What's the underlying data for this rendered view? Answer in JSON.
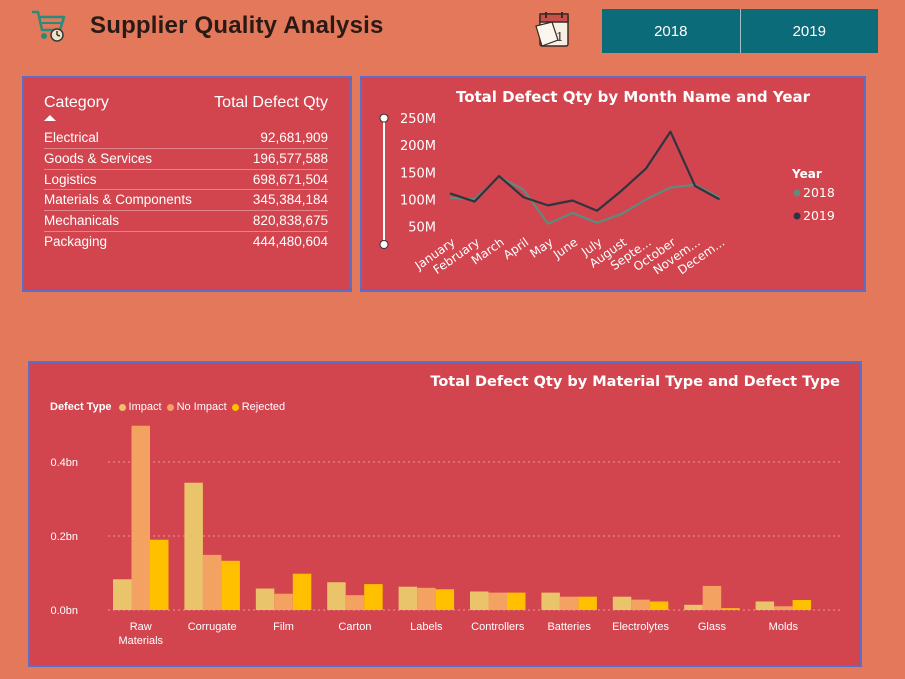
{
  "header": {
    "title": "Supplier Quality Analysis",
    "cart_icon": "shopping-cart-icon",
    "calendar_icon": "calendar-icon"
  },
  "year_slicer": {
    "options": [
      "2018",
      "2019"
    ]
  },
  "category_table": {
    "headers": {
      "category": "Category",
      "qty": "Total Defect Qty"
    },
    "rows": [
      {
        "category": "Electrical",
        "qty": "92,681,909"
      },
      {
        "category": "Goods & Services",
        "qty": "196,577,588"
      },
      {
        "category": "Logistics",
        "qty": "698,671,504"
      },
      {
        "category": "Materials & Components",
        "qty": "345,384,184"
      },
      {
        "category": "Mechanicals",
        "qty": "820,838,675"
      },
      {
        "category": "Packaging",
        "qty": "444,480,604"
      }
    ]
  },
  "line_chart": {
    "title": "Total Defect Qty by Month Name and Year",
    "legend_title": "Year"
  },
  "bar_chart": {
    "title": "Total Defect Qty by Material Type and Defect Type",
    "legend_title": "Defect Type"
  },
  "colors": {
    "background": "#E3795A",
    "panel": "#D2444E",
    "border": "#5B6FC8",
    "slicer": "#0C6B78",
    "series_2018": "#5E8B7E",
    "series_2019": "#2E3540",
    "impact": "#E9C46A",
    "no_impact": "#F4A261",
    "rejected": "#FFC000"
  },
  "chart_data": [
    {
      "type": "line",
      "title": "Total Defect Qty by Month Name and Year",
      "categories": [
        "January",
        "February",
        "March",
        "April",
        "May",
        "June",
        "July",
        "August",
        "Septe...",
        "October",
        "Novem...",
        "Decem..."
      ],
      "ylim": [
        50,
        250
      ],
      "yticks": [
        "250M",
        "200M",
        "150M",
        "100M",
        "50M"
      ],
      "ytick_values": [
        250,
        200,
        150,
        100,
        50
      ],
      "legend_position": "right",
      "series": [
        {
          "name": "2018",
          "values": [
            103,
            100,
            142,
            118,
            55,
            75,
            57,
            73,
            100,
            122,
            127,
            103
          ]
        },
        {
          "name": "2019",
          "values": [
            111,
            96,
            143,
            104,
            89,
            98,
            79,
            116,
            157,
            225,
            125,
            100
          ]
        }
      ]
    },
    {
      "type": "bar",
      "title": "Total Defect Qty by Material Type and Defect Type",
      "categories": [
        "Raw Materials",
        "Corrugate",
        "Film",
        "Carton",
        "Labels",
        "Controllers",
        "Batteries",
        "Electrolytes",
        "Glass",
        "Molds"
      ],
      "yticks": [
        "0.4bn",
        "0.2bn",
        "0.0bn"
      ],
      "ytick_values": [
        0.4,
        0.2,
        0.0
      ],
      "ylim": [
        0,
        0.52
      ],
      "grid": true,
      "legend_position": "top-left",
      "series": [
        {
          "name": "Impact",
          "values": [
            0.083,
            0.344,
            0.058,
            0.075,
            0.063,
            0.05,
            0.047,
            0.036,
            0.014,
            0.023
          ]
        },
        {
          "name": "No Impact",
          "values": [
            0.498,
            0.149,
            0.044,
            0.04,
            0.06,
            0.047,
            0.036,
            0.028,
            0.065,
            0.01
          ]
        },
        {
          "name": "Rejected",
          "values": [
            0.19,
            0.133,
            0.098,
            0.07,
            0.056,
            0.047,
            0.036,
            0.023,
            0.005,
            0.027
          ]
        }
      ]
    }
  ]
}
